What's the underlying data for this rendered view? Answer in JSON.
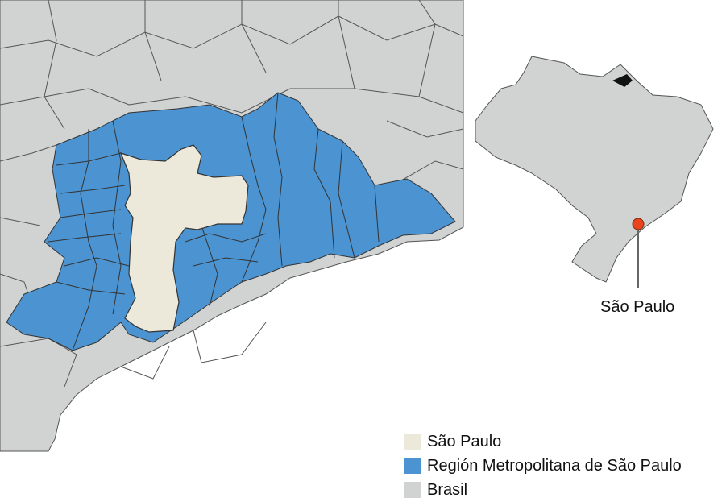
{
  "map": {
    "callout_label": "São Paulo",
    "colors": {
      "city": "#ece9db",
      "metro": "#4b93d1",
      "country": "#d1d2d2",
      "marker": "#e8451f",
      "border": "#555555"
    }
  },
  "legend": {
    "items": [
      {
        "label": "São Paulo",
        "color": "#ece9db"
      },
      {
        "label": "Región Metropolitana de São Paulo",
        "color": "#4b93d1"
      },
      {
        "label": "Brasil",
        "color": "#d1d2d2"
      }
    ]
  }
}
